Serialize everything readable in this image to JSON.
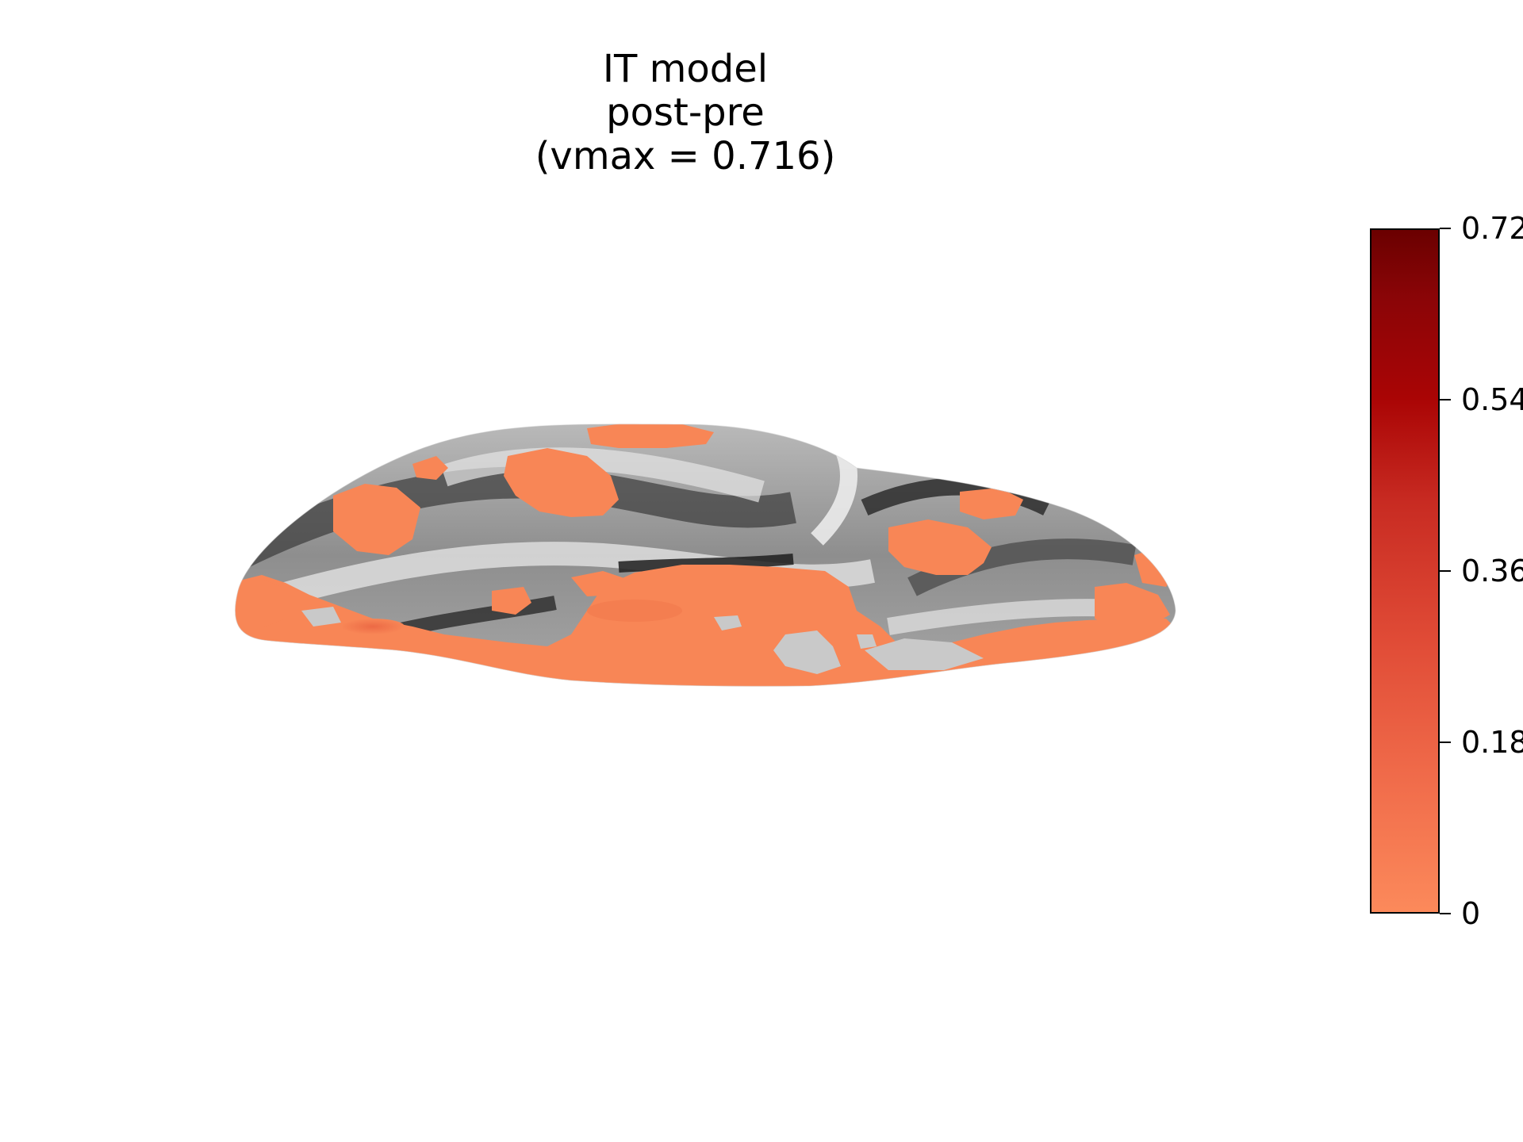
{
  "title": {
    "line1": "IT model",
    "line2": "post-pre",
    "line3": "(vmax = 0.716)"
  },
  "colorbar": {
    "tick_labels": [
      "0.72",
      "0.54",
      "0.36",
      "0.18",
      "0"
    ],
    "tick_values": [
      0.716,
      0.537,
      0.358,
      0.179,
      0
    ],
    "vmin": 0,
    "vmax": 0.716,
    "colormap_stops": [
      "#fc8a5b",
      "#f06b4a",
      "#e04b36",
      "#c82b22",
      "#aa0505",
      "#8a0507",
      "#6a0000"
    ]
  },
  "surface": {
    "overlay_color": "#f88656",
    "peak_overlay_color": "#ec6a45",
    "shading_dark": "#262626",
    "shading_mid": "#8e8e8e",
    "shading_light": "#e2e2e2"
  }
}
